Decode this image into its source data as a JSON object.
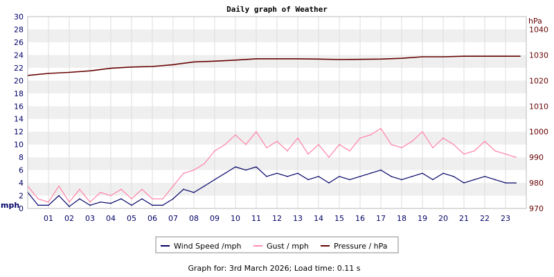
{
  "chart_data": {
    "type": "line",
    "title": "Daily graph of Weather",
    "x_tick_labels": [
      "01",
      "02",
      "03",
      "04",
      "05",
      "06",
      "07",
      "08",
      "09",
      "10",
      "11",
      "12",
      "13",
      "14",
      "15",
      "16",
      "17",
      "18",
      "19",
      "20",
      "21",
      "22",
      "23"
    ],
    "xlim": [
      0,
      24
    ],
    "left_axis": {
      "unit": "mph",
      "ylim": [
        0,
        30
      ],
      "ticks": [
        0,
        2,
        4,
        6,
        8,
        10,
        12,
        14,
        16,
        18,
        20,
        22,
        24,
        26,
        28,
        30
      ]
    },
    "right_axis": {
      "unit": "hPa",
      "ylim": [
        970,
        1045
      ],
      "ticks": [
        970,
        980,
        990,
        1000,
        1010,
        1020,
        1030,
        1040
      ]
    },
    "grid": "horizontal bands",
    "legend_position": "bottom",
    "series": [
      {
        "name": "Wind Speed /mph",
        "axis": "left",
        "color": "#000066",
        "x": [
          0,
          0.5,
          1,
          1.5,
          2,
          2.5,
          3,
          3.5,
          4,
          4.5,
          5,
          5.5,
          6,
          6.5,
          7,
          7.5,
          8,
          8.5,
          9,
          9.5,
          10,
          10.5,
          11,
          11.5,
          12,
          12.5,
          13,
          13.5,
          14,
          14.5,
          15,
          15.5,
          16,
          16.5,
          17,
          17.5,
          18,
          18.5,
          19,
          19.5,
          20,
          20.5,
          21,
          21.5,
          22,
          22.5,
          23,
          23.5
        ],
        "y": [
          2.5,
          0.5,
          0.5,
          2.0,
          0.3,
          1.5,
          0.5,
          1.0,
          0.8,
          1.5,
          0.5,
          1.5,
          0.5,
          0.5,
          1.5,
          3.0,
          2.5,
          3.5,
          4.5,
          5.5,
          6.5,
          6.0,
          6.5,
          5.0,
          5.5,
          5.0,
          5.5,
          4.5,
          5.0,
          4.0,
          5.0,
          4.5,
          5.0,
          5.5,
          6.0,
          5.0,
          4.5,
          5.0,
          5.5,
          4.5,
          5.5,
          5.0,
          4.0,
          4.5,
          5.0,
          4.5,
          4.0,
          4.0
        ]
      },
      {
        "name": "Gust / mph",
        "axis": "left",
        "color": "#ff88aa",
        "x": [
          0,
          0.5,
          1,
          1.5,
          2,
          2.5,
          3,
          3.5,
          4,
          4.5,
          5,
          5.5,
          6,
          6.5,
          7,
          7.5,
          8,
          8.5,
          9,
          9.5,
          10,
          10.5,
          11,
          11.5,
          12,
          12.5,
          13,
          13.5,
          14,
          14.5,
          15,
          15.5,
          16,
          16.5,
          17,
          17.5,
          18,
          18.5,
          19,
          19.5,
          20,
          20.5,
          21,
          21.5,
          22,
          22.5,
          23,
          23.5
        ],
        "y": [
          3.5,
          1.5,
          1.0,
          3.5,
          1.0,
          3.0,
          1.0,
          2.5,
          2.0,
          3.0,
          1.5,
          3.0,
          1.5,
          1.5,
          3.5,
          5.5,
          6.0,
          7.0,
          9.0,
          10.0,
          11.5,
          10.0,
          12.0,
          9.5,
          10.5,
          9.0,
          11.0,
          8.5,
          10.0,
          8.0,
          10.0,
          9.0,
          11.0,
          11.5,
          12.5,
          10.0,
          9.5,
          10.5,
          12.0,
          9.5,
          11.0,
          10.0,
          8.5,
          9.0,
          10.5,
          9.0,
          8.5,
          8.0
        ]
      },
      {
        "name": "Pressure / hPa",
        "axis": "right",
        "color": "#660000",
        "x": [
          0,
          1,
          2,
          3,
          4,
          5,
          6,
          7,
          8,
          9,
          10,
          11,
          12,
          13,
          14,
          15,
          16,
          17,
          18,
          19,
          20,
          21,
          22,
          23,
          23.7
        ],
        "y": [
          1022.0,
          1022.8,
          1023.2,
          1023.8,
          1024.8,
          1025.3,
          1025.5,
          1026.2,
          1027.3,
          1027.6,
          1028.0,
          1028.5,
          1028.5,
          1028.5,
          1028.4,
          1028.2,
          1028.3,
          1028.4,
          1028.7,
          1029.3,
          1029.3,
          1029.5,
          1029.5,
          1029.5,
          1029.5
        ]
      }
    ]
  },
  "footer": {
    "text": "Graph for: 3rd March 2026; Load time: 0.11 s"
  }
}
